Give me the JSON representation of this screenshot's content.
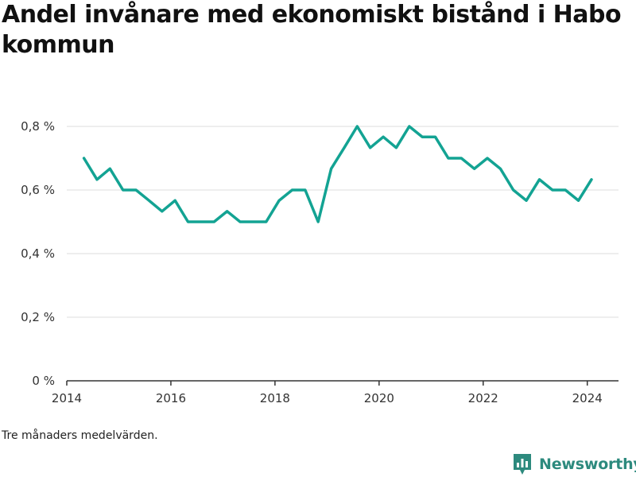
{
  "title": "Andel invånare med ekonomiskt bistånd i Habo kommun",
  "footnote": "Tre månaders medelvärden.",
  "brand": {
    "name": "Newsworthy",
    "icon": "bar-chart-logo-icon",
    "color": "#2d8a7e"
  },
  "chart_data": {
    "type": "line",
    "title": "Andel invånare med ekonomiskt bistånd i Habo kommun",
    "xlabel": "",
    "ylabel": "",
    "xlim": [
      2014,
      2024.6
    ],
    "ylim": [
      0,
      0.8
    ],
    "x_ticks": [
      2014,
      2016,
      2018,
      2020,
      2022,
      2024
    ],
    "x_tick_labels": [
      "2014",
      "2016",
      "2018",
      "2020",
      "2022",
      "2024"
    ],
    "y_ticks": [
      0,
      0.2,
      0.4,
      0.6,
      0.8
    ],
    "y_tick_labels": [
      "0 %",
      "0,2 %",
      "0,4 %",
      "0,6 %",
      "0,8 %"
    ],
    "grid": true,
    "line_color": "#13a393",
    "series": [
      {
        "x": [
          2014.33,
          2014.58,
          2014.83,
          2015.08,
          2015.33,
          2015.58,
          2015.83,
          2016.08,
          2016.33,
          2016.58,
          2016.83,
          2017.08,
          2017.33,
          2017.58,
          2017.83,
          2018.08,
          2018.33,
          2018.58,
          2018.83,
          2019.08,
          2019.33,
          2019.58,
          2019.83,
          2020.08,
          2020.33,
          2020.58,
          2020.83,
          2021.08,
          2021.33,
          2021.58,
          2021.83,
          2022.08,
          2022.33,
          2022.58,
          2022.83,
          2023.08,
          2023.33,
          2023.58,
          2023.83,
          2024.08
        ],
        "values": [
          0.7,
          0.633,
          0.667,
          0.6,
          0.6,
          0.567,
          0.533,
          0.567,
          0.5,
          0.5,
          0.5,
          0.533,
          0.5,
          0.5,
          0.5,
          0.567,
          0.6,
          0.6,
          0.5,
          0.667,
          0.733,
          0.8,
          0.733,
          0.767,
          0.733,
          0.8,
          0.767,
          0.767,
          0.7,
          0.7,
          0.667,
          0.7,
          0.667,
          0.6,
          0.567,
          0.633,
          0.6,
          0.6,
          0.567,
          0.633
        ]
      }
    ]
  }
}
